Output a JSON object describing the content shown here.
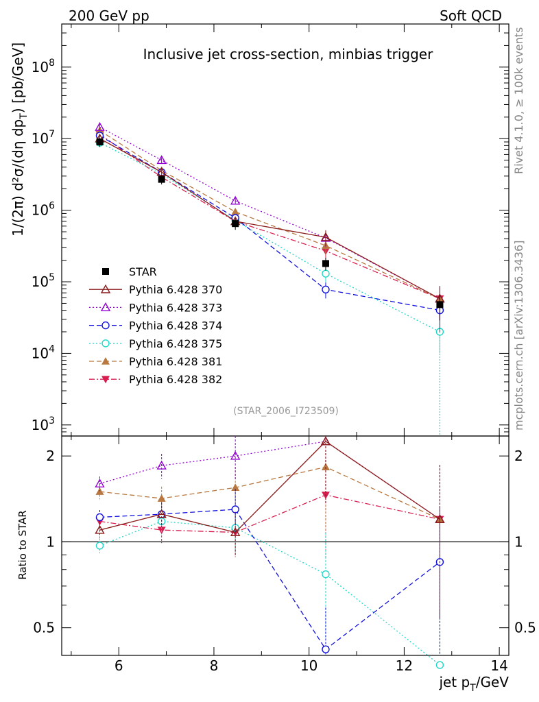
{
  "header": {
    "left": "200 GeV pp",
    "right": "Soft QCD",
    "side_top": "Rivet 4.1.0, ≥ 100k events",
    "side_bottom": "mcplots.cern.ch [arXiv:1306.3436]"
  },
  "colors": {
    "star": "#000000",
    "p370": "#8b1a1a",
    "p373": "#9400d3",
    "p374": "#1010e0",
    "p375": "#20d8c8",
    "p381": "#b87840",
    "p382": "#d81e50"
  },
  "chart_data": [
    {
      "type": "line",
      "title": "Inclusive jet cross-section, minbias trigger",
      "ylabel_main": "1/(2π)  d²σ/(dη dp",
      "ylabel_sub": "T",
      "ylabel_end": ") [pb/GeV]",
      "xlabel": "jet p",
      "xlabel_sub": "T",
      "xlabel_end": "/GeV",
      "analysis_id": "(STAR_2006_I723509)",
      "xlim": [
        4.8,
        14.2
      ],
      "ylim": [
        700,
        400000000
      ],
      "yscale": "log",
      "x_ticks": [
        "6",
        "8",
        "10",
        "12",
        "14"
      ],
      "y_ticks": [
        {
          "base": "10",
          "exp": "3"
        },
        {
          "base": "10",
          "exp": "4"
        },
        {
          "base": "10",
          "exp": "5"
        },
        {
          "base": "10",
          "exp": "6"
        },
        {
          "base": "10",
          "exp": "7"
        },
        {
          "base": "10",
          "exp": "8"
        }
      ],
      "x": [
        5.6,
        6.9,
        8.45,
        10.35,
        12.75
      ],
      "series": [
        {
          "key": "star",
          "name": "STAR",
          "marker": "square",
          "dash": "none",
          "values": [
            9000000,
            2700000,
            650000,
            180000,
            48000
          ],
          "err": [
            0.15,
            0.15,
            0.18,
            0.2,
            0.4
          ]
        },
        {
          "key": "p370",
          "name": "Pythia 6.428 370",
          "marker": "tri-open",
          "dash": "solid",
          "values": [
            10000000,
            3400000,
            700000,
            420000,
            58000
          ]
        },
        {
          "key": "p373",
          "name": "Pythia 6.428 373",
          "marker": "tri-open",
          "dash": "dotted",
          "values": [
            14500000,
            5000000,
            1350000,
            410000,
            58000
          ]
        },
        {
          "key": "p374",
          "name": "Pythia 6.428 374",
          "marker": "circle-open",
          "dash": "dashed",
          "values": [
            11000000,
            3400000,
            780000,
            78000,
            40000
          ]
        },
        {
          "key": "p375",
          "name": "Pythia 6.428 375",
          "marker": "circle-open",
          "dash": "dotted",
          "values": [
            8800000,
            3200000,
            720000,
            130000,
            20000
          ]
        },
        {
          "key": "p381",
          "name": "Pythia 6.428 381",
          "marker": "tri-filled",
          "dash": "dashed",
          "values": [
            13000000,
            3600000,
            950000,
            320000,
            58000
          ]
        },
        {
          "key": "p382",
          "name": "Pythia 6.428 382",
          "marker": "tri-down-filled",
          "dash": "dashdot",
          "values": [
            11500000,
            2900000,
            700000,
            270000,
            58000
          ]
        }
      ]
    },
    {
      "type": "line",
      "title": "Ratio to STAR",
      "ylabel": "Ratio to STAR",
      "xlim": [
        4.8,
        14.2
      ],
      "ylim": [
        0.4,
        2.35
      ],
      "yscale": "log",
      "y_ticks": [
        "0.5",
        "1",
        "2"
      ],
      "y_ticks_right": [
        "0.5",
        "1",
        "2"
      ],
      "x": [
        5.6,
        6.9,
        8.45,
        10.35,
        12.75
      ],
      "series": [
        {
          "key": "p370",
          "values": [
            1.1,
            1.25,
            1.08,
            2.25,
            1.2
          ]
        },
        {
          "key": "p373",
          "values": [
            1.6,
            1.85,
            2.0,
            2.25,
            1.2
          ]
        },
        {
          "key": "p374",
          "values": [
            1.22,
            1.25,
            1.3,
            0.42,
            0.85
          ]
        },
        {
          "key": "p375",
          "values": [
            0.97,
            1.18,
            1.12,
            0.77,
            0.37
          ]
        },
        {
          "key": "p381",
          "values": [
            1.5,
            1.42,
            1.55,
            1.83,
            1.2
          ]
        },
        {
          "key": "p382",
          "values": [
            1.18,
            1.1,
            1.08,
            1.46,
            1.2
          ]
        }
      ]
    }
  ]
}
